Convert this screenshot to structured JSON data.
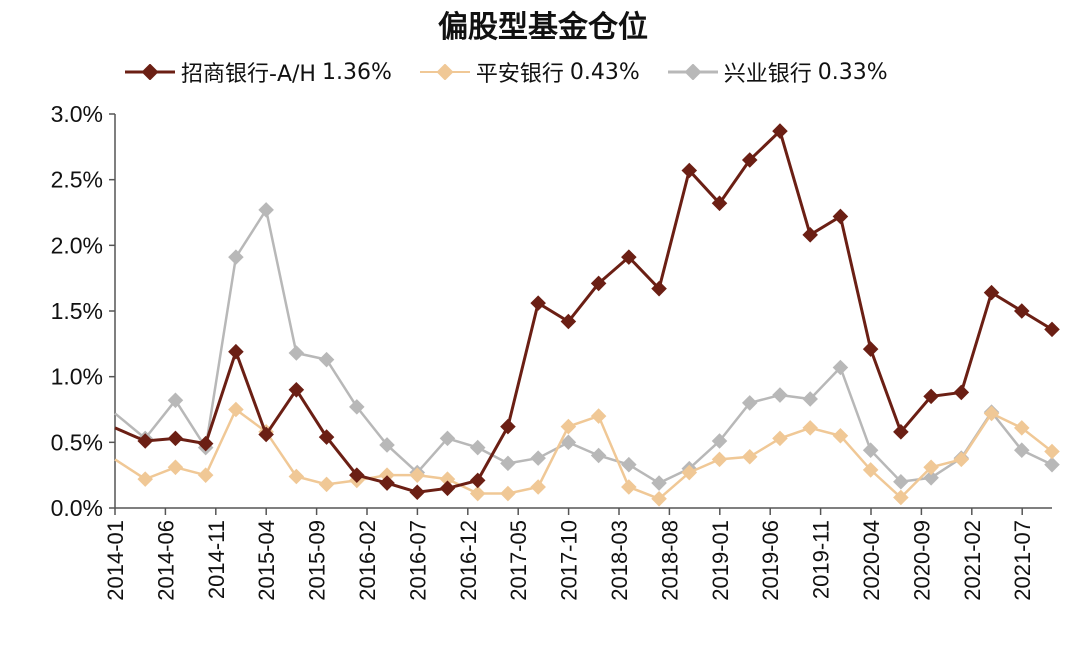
{
  "chart_data": {
    "type": "line",
    "title": "偏股型基金仓位",
    "xlabel": "",
    "ylabel": "",
    "ylim": [
      0,
      3.0
    ],
    "y_ticks": [
      "0.0%",
      "0.5%",
      "1.0%",
      "1.5%",
      "2.0%",
      "2.5%",
      "3.0%"
    ],
    "x_tick_labels": [
      "2014-01",
      "2014-06",
      "2014-11",
      "2015-04",
      "2015-09",
      "2016-02",
      "2016-07",
      "2016-12",
      "2017-05",
      "2017-10",
      "2018-03",
      "2018-08",
      "2019-01",
      "2019-06",
      "2019-11",
      "2020-04",
      "2020-09",
      "2021-02",
      "2021-07"
    ],
    "grid": false,
    "legend_position": "top",
    "series": [
      {
        "name": "招商银行-A/H",
        "legend_value": "1.36%",
        "color": "#6b1f14",
        "values": [
          0.61,
          0.51,
          0.53,
          0.49,
          1.19,
          0.56,
          0.9,
          0.54,
          0.25,
          0.19,
          0.12,
          0.15,
          0.21,
          0.62,
          1.56,
          1.42,
          1.71,
          1.91,
          1.67,
          2.57,
          2.32,
          2.65,
          2.87,
          2.08,
          2.22,
          1.21,
          0.58,
          0.85,
          0.88,
          1.64,
          1.5,
          1.36
        ]
      },
      {
        "name": "平安银行",
        "legend_value": "0.43%",
        "color": "#f0c896",
        "values": [
          0.37,
          0.22,
          0.31,
          0.25,
          0.75,
          0.58,
          0.24,
          0.18,
          0.21,
          0.25,
          0.25,
          0.22,
          0.11,
          0.11,
          0.16,
          0.62,
          0.7,
          0.16,
          0.07,
          0.27,
          0.37,
          0.39,
          0.53,
          0.61,
          0.55,
          0.29,
          0.08,
          0.31,
          0.37,
          0.72,
          0.61,
          0.43
        ]
      },
      {
        "name": "兴业银行",
        "legend_value": "0.33%",
        "color": "#b8b8b8",
        "values": [
          0.72,
          0.53,
          0.82,
          0.46,
          1.91,
          2.27,
          1.18,
          1.13,
          0.77,
          0.48,
          0.27,
          0.53,
          0.46,
          0.34,
          0.38,
          0.5,
          0.4,
          0.33,
          0.19,
          0.3,
          0.51,
          0.8,
          0.86,
          0.83,
          1.07,
          0.44,
          0.2,
          0.23,
          0.38,
          0.73,
          0.44,
          0.33
        ]
      }
    ]
  }
}
